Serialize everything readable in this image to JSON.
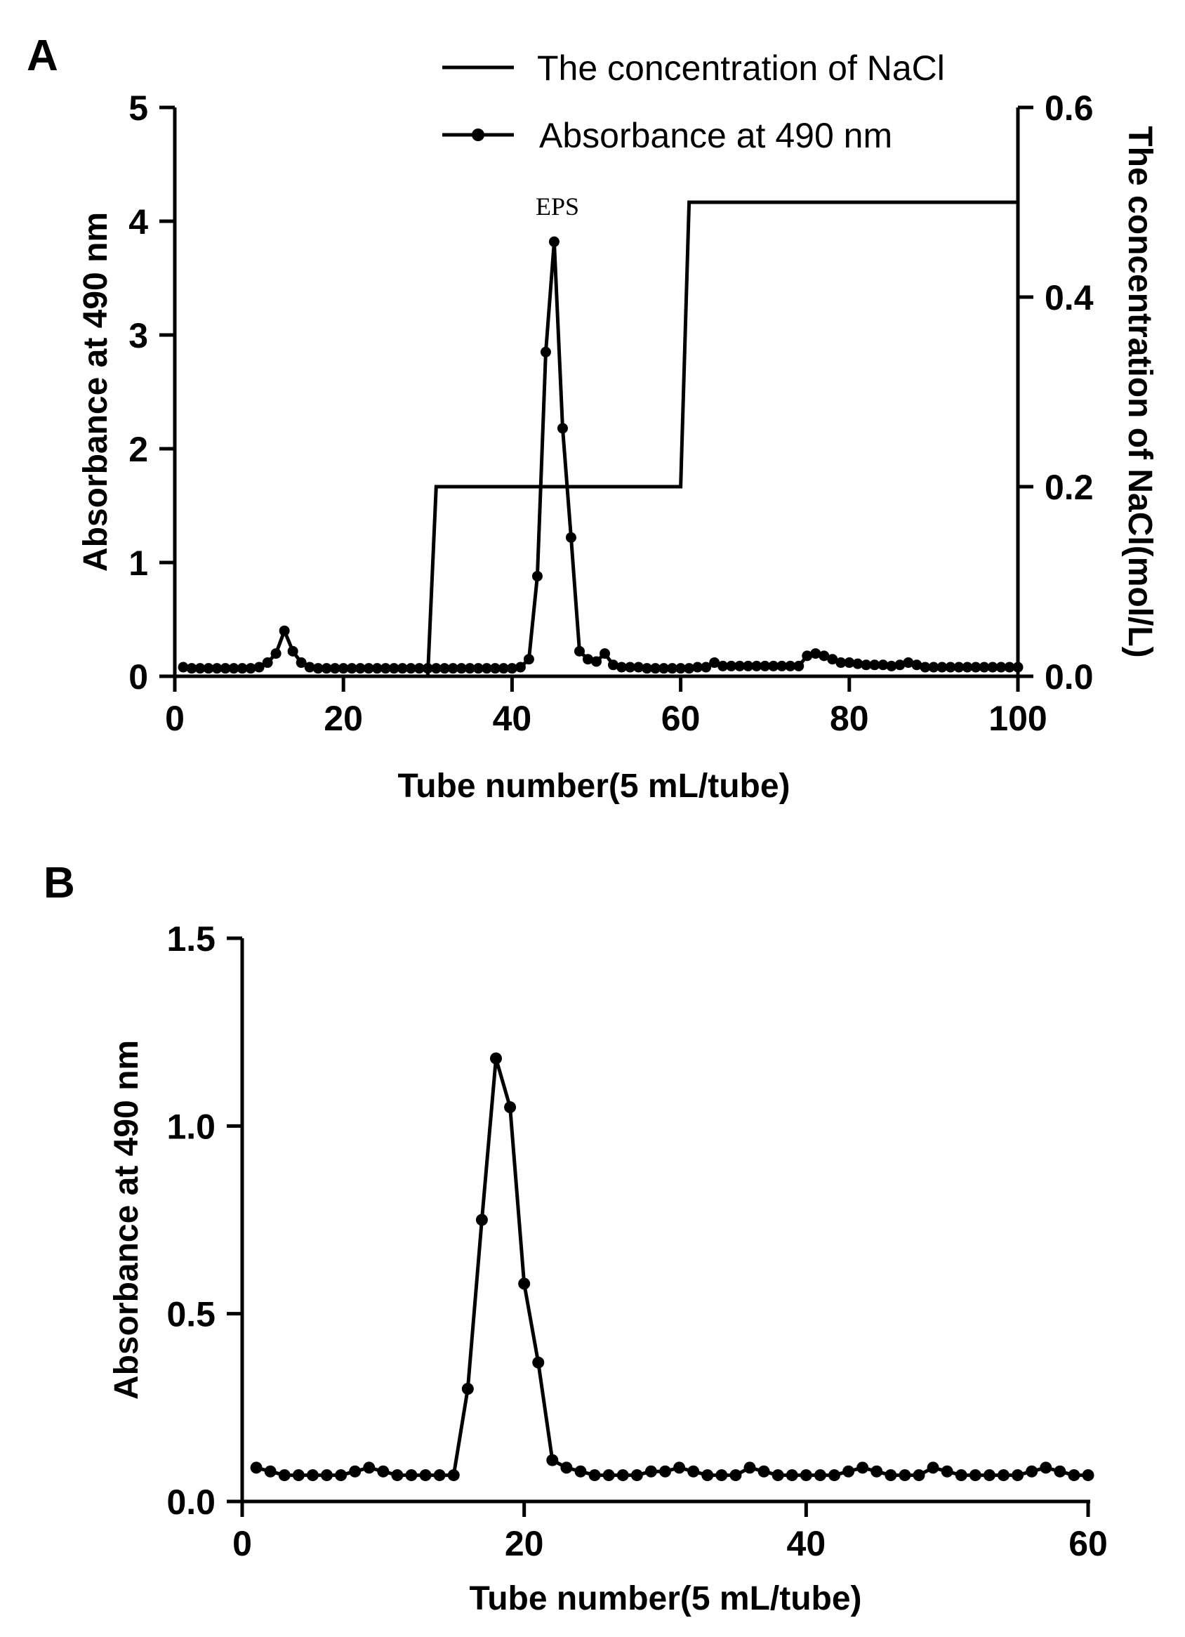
{
  "chart_data": [
    {
      "panel_label": "A",
      "type": "line",
      "xlabel": "Tube number(5 mL/tube)",
      "ylabel": "Absorbance at 490 nm",
      "y2label": "The concentration of NaCl(mol/L)",
      "xlim": [
        0,
        100
      ],
      "ylim": [
        0,
        5
      ],
      "y2lim": [
        0,
        0.6
      ],
      "xticks": [
        "0",
        "20",
        "40",
        "60",
        "80",
        "100"
      ],
      "yticks": [
        "0",
        "1",
        "2",
        "3",
        "4",
        "5"
      ],
      "y2ticks": [
        "0.0",
        "0.2",
        "0.4",
        "0.6"
      ],
      "legend_position": "top",
      "annotation": "EPS",
      "series": [
        {
          "name": "Absorbance at 490 nm",
          "axis": "left",
          "marker": "circle",
          "x": [
            1,
            2,
            3,
            4,
            5,
            6,
            7,
            8,
            9,
            10,
            11,
            12,
            13,
            14,
            15,
            16,
            17,
            18,
            19,
            20,
            21,
            22,
            23,
            24,
            25,
            26,
            27,
            28,
            29,
            30,
            31,
            32,
            33,
            34,
            35,
            36,
            37,
            38,
            39,
            40,
            41,
            42,
            43,
            44,
            45,
            46,
            47,
            48,
            49,
            50,
            51,
            52,
            53,
            54,
            55,
            56,
            57,
            58,
            59,
            60,
            61,
            62,
            63,
            64,
            65,
            66,
            67,
            68,
            69,
            70,
            71,
            72,
            73,
            74,
            75,
            76,
            77,
            78,
            79,
            80,
            81,
            82,
            83,
            84,
            85,
            86,
            87,
            88,
            89,
            90,
            91,
            92,
            93,
            94,
            95,
            96,
            97,
            98,
            99,
            100
          ],
          "y": [
            0.08,
            0.07,
            0.07,
            0.07,
            0.07,
            0.07,
            0.07,
            0.07,
            0.07,
            0.08,
            0.12,
            0.2,
            0.4,
            0.22,
            0.12,
            0.08,
            0.07,
            0.07,
            0.07,
            0.07,
            0.07,
            0.07,
            0.07,
            0.07,
            0.07,
            0.07,
            0.07,
            0.07,
            0.07,
            0.07,
            0.07,
            0.07,
            0.07,
            0.07,
            0.07,
            0.07,
            0.07,
            0.07,
            0.07,
            0.07,
            0.08,
            0.15,
            0.88,
            2.85,
            3.82,
            2.18,
            1.22,
            0.22,
            0.15,
            0.13,
            0.2,
            0.1,
            0.08,
            0.08,
            0.08,
            0.07,
            0.07,
            0.07,
            0.07,
            0.07,
            0.07,
            0.08,
            0.08,
            0.12,
            0.09,
            0.09,
            0.09,
            0.09,
            0.09,
            0.09,
            0.09,
            0.09,
            0.09,
            0.09,
            0.18,
            0.2,
            0.18,
            0.15,
            0.12,
            0.12,
            0.11,
            0.1,
            0.1,
            0.1,
            0.09,
            0.1,
            0.12,
            0.1,
            0.08,
            0.08,
            0.08,
            0.08,
            0.08,
            0.08,
            0.08,
            0.08,
            0.08,
            0.08,
            0.08,
            0.08
          ]
        },
        {
          "name": "The concentration of NaCl",
          "axis": "right",
          "marker": "none",
          "x": [
            30,
            31,
            60,
            61,
            100,
            100
          ],
          "y": [
            0.0,
            0.2,
            0.2,
            0.5,
            0.5,
            0.0
          ]
        }
      ]
    },
    {
      "panel_label": "B",
      "type": "line",
      "xlabel": "Tube number(5 mL/tube)",
      "ylabel": "Absorbance at 490 nm",
      "xlim": [
        0,
        60
      ],
      "ylim": [
        0,
        1.5
      ],
      "xticks": [
        "0",
        "20",
        "40",
        "60"
      ],
      "yticks": [
        "0.0",
        "0.5",
        "1.0",
        "1.5"
      ],
      "series": [
        {
          "marker": "circle",
          "x": [
            1,
            2,
            3,
            4,
            5,
            6,
            7,
            8,
            9,
            10,
            11,
            12,
            13,
            14,
            15,
            16,
            17,
            18,
            19,
            20,
            21,
            22,
            23,
            24,
            25,
            26,
            27,
            28,
            29,
            30,
            31,
            32,
            33,
            34,
            35,
            36,
            37,
            38,
            39,
            40,
            41,
            42,
            43,
            44,
            45,
            46,
            47,
            48,
            49,
            50,
            51,
            52,
            53,
            54,
            55,
            56,
            57,
            58,
            59,
            60
          ],
          "y": [
            0.09,
            0.08,
            0.07,
            0.07,
            0.07,
            0.07,
            0.07,
            0.08,
            0.09,
            0.08,
            0.07,
            0.07,
            0.07,
            0.07,
            0.07,
            0.3,
            0.75,
            1.18,
            1.05,
            0.58,
            0.37,
            0.11,
            0.09,
            0.08,
            0.07,
            0.07,
            0.07,
            0.07,
            0.08,
            0.08,
            0.09,
            0.08,
            0.07,
            0.07,
            0.07,
            0.09,
            0.08,
            0.07,
            0.07,
            0.07,
            0.07,
            0.07,
            0.08,
            0.09,
            0.08,
            0.07,
            0.07,
            0.07,
            0.09,
            0.08,
            0.07,
            0.07,
            0.07,
            0.07,
            0.07,
            0.08,
            0.09,
            0.08,
            0.07,
            0.07
          ]
        }
      ]
    }
  ]
}
